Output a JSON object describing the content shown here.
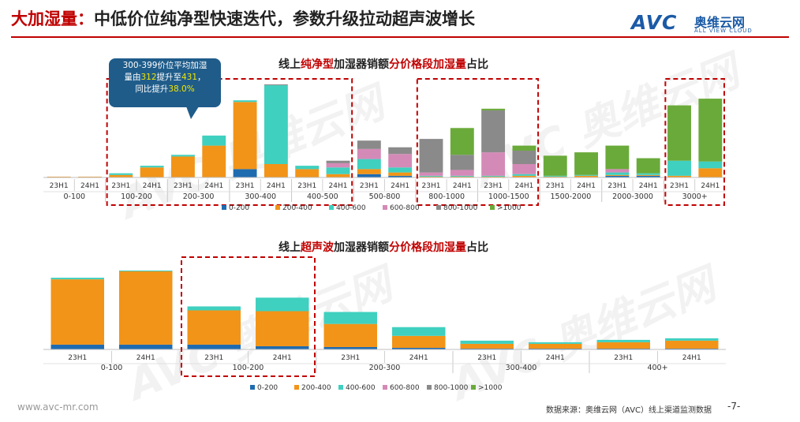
{
  "header": {
    "title_red": "大加湿量：",
    "title_rest": "中低价位纯净型快速迭代，参数升级拉动超声波增长",
    "logo": {
      "text": "AVC",
      "cn": "奥维云网",
      "en": "ALL VIEW CLOUD"
    }
  },
  "callout": {
    "line1": "300-399价位平均加湿",
    "line2_a": "量由",
    "line2_v1": "312",
    "line2_b": "提升至",
    "line2_v2": "431",
    "line2_c": "，",
    "line3_a": "同比提升",
    "line3_v": "38.0%"
  },
  "watermark": {
    "text": "AVC 奥维云网",
    "sub": "ALL VIEW CLOUD"
  },
  "footer": {
    "site": "www.avc-mr.com",
    "source": "数据来源：奥维云网（AVC）线上渠道监测数据",
    "page": "-7-"
  },
  "colors": {
    "0-200": "#1f6bb0",
    "200-400": "#f29418",
    "400-600": "#3fd0bf",
    "600-800": "#d48ab7",
    "800-1000": "#8a8a8a",
    ">1000": "#6aaa3a",
    "highlight": "#c00000"
  },
  "chart_data": [
    {
      "type": "bar",
      "stacked": true,
      "title_parts": [
        {
          "text": "线上",
          "hl": false
        },
        {
          "text": "纯净型",
          "hl": true
        },
        {
          "text": "加湿器销额",
          "hl": false
        },
        {
          "text": "分价格段加湿量",
          "hl": true
        },
        {
          "text": "占比",
          "hl": false
        }
      ],
      "groups": [
        "0-100",
        "100-200",
        "200-300",
        "300-400",
        "400-500",
        "500-800",
        "800-1000",
        "1000-1500",
        "1500-2000",
        "2000-3000",
        "3000+"
      ],
      "periods": [
        "23H1",
        "24H1"
      ],
      "series_names": [
        "0-200",
        "200-400",
        "400-600",
        "600-800",
        "800-1000",
        ">1000"
      ],
      "values": [
        [
          [
            0,
            1,
            0,
            0,
            0,
            0
          ],
          [
            0,
            1,
            0,
            0,
            0,
            0
          ]
        ],
        [
          [
            0,
            3,
            2,
            0,
            0,
            0
          ],
          [
            0,
            12,
            2,
            0,
            0,
            0
          ]
        ],
        [
          [
            0,
            25,
            2,
            0,
            0,
            0
          ],
          [
            0,
            38,
            12,
            0,
            0,
            0
          ]
        ],
        [
          [
            10,
            80,
            2,
            0,
            0,
            0
          ],
          [
            0,
            16,
            94,
            0,
            1,
            0
          ]
        ],
        [
          [
            0,
            10,
            4,
            0,
            0,
            0
          ],
          [
            0,
            4,
            8,
            5,
            3,
            0
          ]
        ],
        [
          [
            4,
            6,
            12,
            12,
            10,
            0
          ],
          [
            2,
            4,
            6,
            16,
            8,
            0
          ]
        ],
        [
          [
            0,
            1,
            1,
            4,
            40,
            0
          ],
          [
            0,
            1,
            1,
            7,
            18,
            32
          ]
        ],
        [
          [
            0,
            1,
            1,
            28,
            50,
            2
          ],
          [
            0,
            2,
            2,
            12,
            16,
            6
          ]
        ],
        [
          [
            0,
            1,
            1,
            0,
            0,
            24
          ],
          [
            0,
            2,
            1,
            0,
            0,
            27
          ]
        ],
        [
          [
            2,
            1,
            3,
            4,
            0,
            28
          ],
          [
            2,
            1,
            2,
            0,
            0,
            18
          ]
        ],
        [
          [
            0,
            2,
            18,
            0,
            0,
            66
          ],
          [
            0,
            11,
            8,
            0,
            0,
            75
          ]
        ]
      ],
      "highlighted_groups": [
        "100-200",
        "200-300",
        "300-400",
        "400-500",
        "800-1000",
        "1000-1500",
        "3000+"
      ]
    },
    {
      "type": "bar",
      "stacked": true,
      "title_parts": [
        {
          "text": "线上",
          "hl": false
        },
        {
          "text": "超声波",
          "hl": true
        },
        {
          "text": "加湿器销额",
          "hl": false
        },
        {
          "text": "分价格段加湿量",
          "hl": true
        },
        {
          "text": "占比",
          "hl": false
        }
      ],
      "groups": [
        "0-100",
        "100-200",
        "200-300",
        "300-400",
        "400+"
      ],
      "periods": [
        "23H1",
        "24H1"
      ],
      "series_names": [
        "0-200",
        "200-400",
        "400-600",
        "600-800",
        "800-1000",
        ">1000"
      ],
      "values": [
        [
          [
            6,
            82,
            2,
            0,
            0,
            0
          ],
          [
            6,
            92,
            1,
            0,
            0,
            0
          ]
        ],
        [
          [
            6,
            43,
            5,
            0,
            0,
            0
          ],
          [
            4,
            44,
            17,
            0,
            0,
            0
          ]
        ],
        [
          [
            3,
            29,
            15,
            0,
            0,
            0
          ],
          [
            2,
            15,
            11,
            0,
            0,
            0
          ]
        ],
        [
          [
            1,
            6,
            4,
            0,
            0,
            0
          ],
          [
            1,
            6,
            2,
            0,
            0,
            0
          ]
        ],
        [
          [
            1,
            8,
            3,
            0,
            0,
            0
          ],
          [
            1,
            10,
            3,
            0,
            0,
            0
          ]
        ]
      ],
      "highlighted_groups": [
        "100-200"
      ]
    }
  ]
}
